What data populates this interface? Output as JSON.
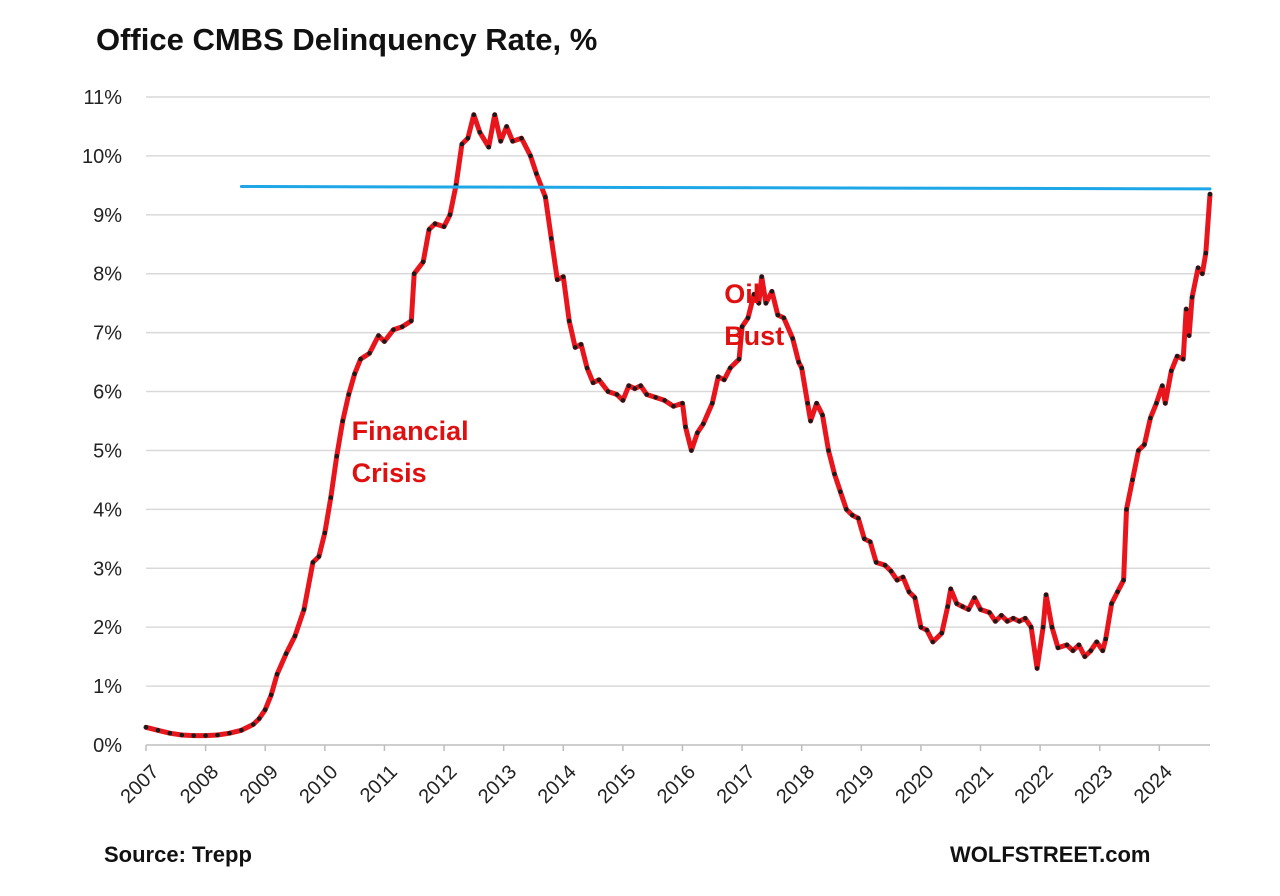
{
  "title": "Office CMBS Delinquency Rate, %",
  "source": "Source: Trepp",
  "brand": "WOLFSTREET.com",
  "chart_data": {
    "type": "line",
    "title": "Office CMBS Delinquency Rate, %",
    "xlabel": "",
    "ylabel": "",
    "x_range": [
      2007.0,
      2024.85
    ],
    "ylim": [
      0,
      11
    ],
    "y_ticks": [
      "0%",
      "1%",
      "2%",
      "3%",
      "4%",
      "5%",
      "6%",
      "7%",
      "8%",
      "9%",
      "10%",
      "11%"
    ],
    "x_ticks": [
      "2007",
      "2008",
      "2009",
      "2010",
      "2011",
      "2012",
      "2013",
      "2014",
      "2015",
      "2016",
      "2017",
      "2018",
      "2019",
      "2020",
      "2021",
      "2022",
      "2023",
      "2024"
    ],
    "grid": true,
    "legend": "none",
    "series": [
      {
        "color": "#e8161c",
        "marker_color": "#1a1a1a",
        "points": [
          [
            2007.0,
            0.3
          ],
          [
            2007.2,
            0.25
          ],
          [
            2007.4,
            0.2
          ],
          [
            2007.6,
            0.17
          ],
          [
            2007.8,
            0.16
          ],
          [
            2008.0,
            0.16
          ],
          [
            2008.2,
            0.17
          ],
          [
            2008.4,
            0.2
          ],
          [
            2008.6,
            0.25
          ],
          [
            2008.8,
            0.35
          ],
          [
            2008.9,
            0.45
          ],
          [
            2009.0,
            0.6
          ],
          [
            2009.1,
            0.85
          ],
          [
            2009.2,
            1.2
          ],
          [
            2009.35,
            1.55
          ],
          [
            2009.5,
            1.85
          ],
          [
            2009.65,
            2.3
          ],
          [
            2009.8,
            3.1
          ],
          [
            2009.9,
            3.2
          ],
          [
            2010.0,
            3.6
          ],
          [
            2010.1,
            4.2
          ],
          [
            2010.2,
            4.9
          ],
          [
            2010.3,
            5.5
          ],
          [
            2010.4,
            5.95
          ],
          [
            2010.5,
            6.3
          ],
          [
            2010.6,
            6.55
          ],
          [
            2010.75,
            6.65
          ],
          [
            2010.9,
            6.95
          ],
          [
            2011.0,
            6.85
          ],
          [
            2011.15,
            7.05
          ],
          [
            2011.3,
            7.1
          ],
          [
            2011.45,
            7.2
          ],
          [
            2011.5,
            8.0
          ],
          [
            2011.65,
            8.2
          ],
          [
            2011.75,
            8.75
          ],
          [
            2011.85,
            8.85
          ],
          [
            2012.0,
            8.8
          ],
          [
            2012.1,
            9.0
          ],
          [
            2012.2,
            9.5
          ],
          [
            2012.3,
            10.2
          ],
          [
            2012.4,
            10.3
          ],
          [
            2012.5,
            10.7
          ],
          [
            2012.6,
            10.4
          ],
          [
            2012.75,
            10.15
          ],
          [
            2012.85,
            10.7
          ],
          [
            2012.95,
            10.25
          ],
          [
            2013.05,
            10.5
          ],
          [
            2013.15,
            10.25
          ],
          [
            2013.3,
            10.3
          ],
          [
            2013.45,
            10.0
          ],
          [
            2013.55,
            9.7
          ],
          [
            2013.7,
            9.3
          ],
          [
            2013.8,
            8.6
          ],
          [
            2013.9,
            7.9
          ],
          [
            2014.0,
            7.95
          ],
          [
            2014.1,
            7.2
          ],
          [
            2014.2,
            6.75
          ],
          [
            2014.3,
            6.8
          ],
          [
            2014.4,
            6.4
          ],
          [
            2014.5,
            6.15
          ],
          [
            2014.6,
            6.2
          ],
          [
            2014.75,
            6.0
          ],
          [
            2014.9,
            5.95
          ],
          [
            2015.0,
            5.85
          ],
          [
            2015.1,
            6.1
          ],
          [
            2015.2,
            6.05
          ],
          [
            2015.3,
            6.1
          ],
          [
            2015.4,
            5.95
          ],
          [
            2015.55,
            5.9
          ],
          [
            2015.7,
            5.85
          ],
          [
            2015.85,
            5.75
          ],
          [
            2016.0,
            5.8
          ],
          [
            2016.05,
            5.4
          ],
          [
            2016.15,
            5.0
          ],
          [
            2016.25,
            5.3
          ],
          [
            2016.35,
            5.45
          ],
          [
            2016.5,
            5.8
          ],
          [
            2016.6,
            6.25
          ],
          [
            2016.7,
            6.2
          ],
          [
            2016.8,
            6.4
          ],
          [
            2016.95,
            6.55
          ],
          [
            2017.0,
            7.1
          ],
          [
            2017.1,
            7.25
          ],
          [
            2017.2,
            7.65
          ],
          [
            2017.28,
            7.5
          ],
          [
            2017.33,
            7.95
          ],
          [
            2017.4,
            7.5
          ],
          [
            2017.5,
            7.7
          ],
          [
            2017.6,
            7.3
          ],
          [
            2017.7,
            7.25
          ],
          [
            2017.85,
            6.9
          ],
          [
            2017.95,
            6.5
          ],
          [
            2018.0,
            6.4
          ],
          [
            2018.1,
            5.8
          ],
          [
            2018.15,
            5.5
          ],
          [
            2018.25,
            5.8
          ],
          [
            2018.35,
            5.6
          ],
          [
            2018.45,
            5.0
          ],
          [
            2018.55,
            4.6
          ],
          [
            2018.65,
            4.3
          ],
          [
            2018.75,
            4.0
          ],
          [
            2018.85,
            3.9
          ],
          [
            2018.95,
            3.85
          ],
          [
            2019.05,
            3.5
          ],
          [
            2019.15,
            3.45
          ],
          [
            2019.25,
            3.1
          ],
          [
            2019.4,
            3.05
          ],
          [
            2019.5,
            2.95
          ],
          [
            2019.6,
            2.8
          ],
          [
            2019.7,
            2.85
          ],
          [
            2019.8,
            2.6
          ],
          [
            2019.9,
            2.5
          ],
          [
            2020.0,
            2.0
          ],
          [
            2020.1,
            1.95
          ],
          [
            2020.2,
            1.75
          ],
          [
            2020.35,
            1.9
          ],
          [
            2020.45,
            2.35
          ],
          [
            2020.5,
            2.65
          ],
          [
            2020.6,
            2.4
          ],
          [
            2020.7,
            2.35
          ],
          [
            2020.8,
            2.3
          ],
          [
            2020.9,
            2.5
          ],
          [
            2021.0,
            2.3
          ],
          [
            2021.15,
            2.25
          ],
          [
            2021.25,
            2.1
          ],
          [
            2021.35,
            2.2
          ],
          [
            2021.45,
            2.1
          ],
          [
            2021.55,
            2.15
          ],
          [
            2021.65,
            2.1
          ],
          [
            2021.75,
            2.15
          ],
          [
            2021.85,
            2.0
          ],
          [
            2021.95,
            1.3
          ],
          [
            2022.05,
            2.0
          ],
          [
            2022.1,
            2.55
          ],
          [
            2022.2,
            2.0
          ],
          [
            2022.3,
            1.65
          ],
          [
            2022.45,
            1.7
          ],
          [
            2022.55,
            1.6
          ],
          [
            2022.65,
            1.7
          ],
          [
            2022.75,
            1.5
          ],
          [
            2022.85,
            1.6
          ],
          [
            2022.95,
            1.75
          ],
          [
            2023.05,
            1.6
          ],
          [
            2023.1,
            1.8
          ],
          [
            2023.2,
            2.4
          ],
          [
            2023.3,
            2.6
          ],
          [
            2023.4,
            2.8
          ],
          [
            2023.45,
            4.0
          ],
          [
            2023.55,
            4.5
          ],
          [
            2023.65,
            5.0
          ],
          [
            2023.75,
            5.1
          ],
          [
            2023.85,
            5.55
          ],
          [
            2023.95,
            5.8
          ],
          [
            2024.05,
            6.1
          ],
          [
            2024.1,
            5.8
          ],
          [
            2024.2,
            6.35
          ],
          [
            2024.3,
            6.6
          ],
          [
            2024.4,
            6.55
          ],
          [
            2024.45,
            7.4
          ],
          [
            2024.5,
            6.95
          ],
          [
            2024.55,
            7.6
          ],
          [
            2024.65,
            8.1
          ],
          [
            2024.72,
            8.0
          ],
          [
            2024.78,
            8.35
          ],
          [
            2024.85,
            9.35
          ]
        ]
      },
      {
        "color": "#1ea7e6",
        "points": [
          [
            2008.6,
            9.48
          ],
          [
            2024.85,
            9.44
          ]
        ]
      }
    ],
    "annotations": [
      {
        "lines": [
          "Financial",
          "Crisis"
        ],
        "x": 2010.45,
        "y": 5.18
      },
      {
        "lines": [
          "Oil",
          "Bust"
        ],
        "x": 2016.7,
        "y": 7.5
      }
    ]
  }
}
